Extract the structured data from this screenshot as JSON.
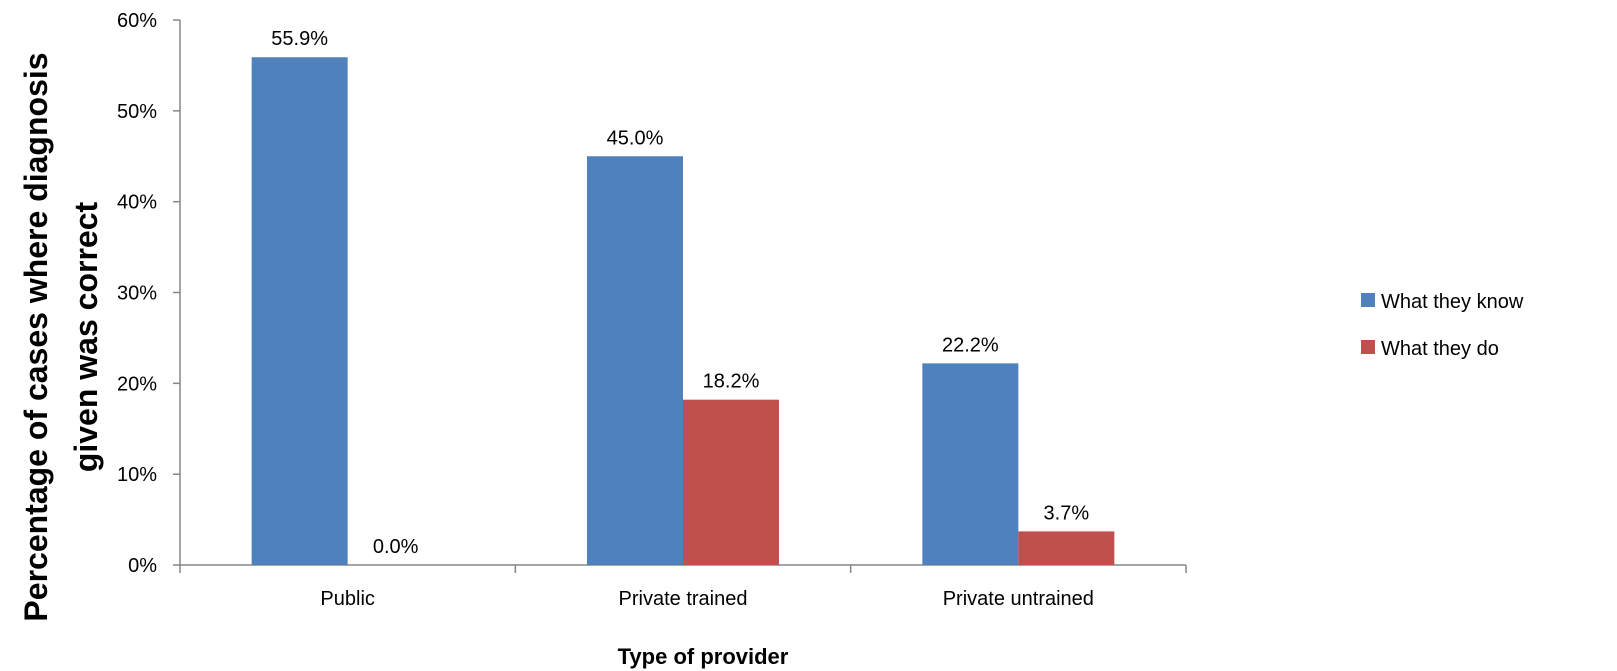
{
  "chart_data": {
    "type": "bar",
    "categories": [
      "Public",
      "Private trained",
      "Private untrained"
    ],
    "series": [
      {
        "name": "What they know",
        "values": [
          55.9,
          45.0,
          22.2
        ],
        "labels": [
          "55.9%",
          "45.0%",
          "22.2%"
        ],
        "color": "#4F81BD"
      },
      {
        "name": "What they do",
        "values": [
          0.0,
          18.2,
          3.7
        ],
        "labels": [
          "0.0%",
          "18.2%",
          "3.7%"
        ],
        "color": "#C0504D"
      }
    ],
    "xlabel": "Type of provider",
    "ylabel_lines": [
      "Percentage of cases where diagnosis",
      "given was correct"
    ],
    "ylim": [
      0,
      60
    ],
    "yticks": [
      0,
      10,
      20,
      30,
      40,
      50,
      60
    ],
    "ytick_labels": [
      "0%",
      "10%",
      "20%",
      "30%",
      "40%",
      "50%",
      "60%"
    ],
    "grid": false,
    "legend_position": "right"
  }
}
